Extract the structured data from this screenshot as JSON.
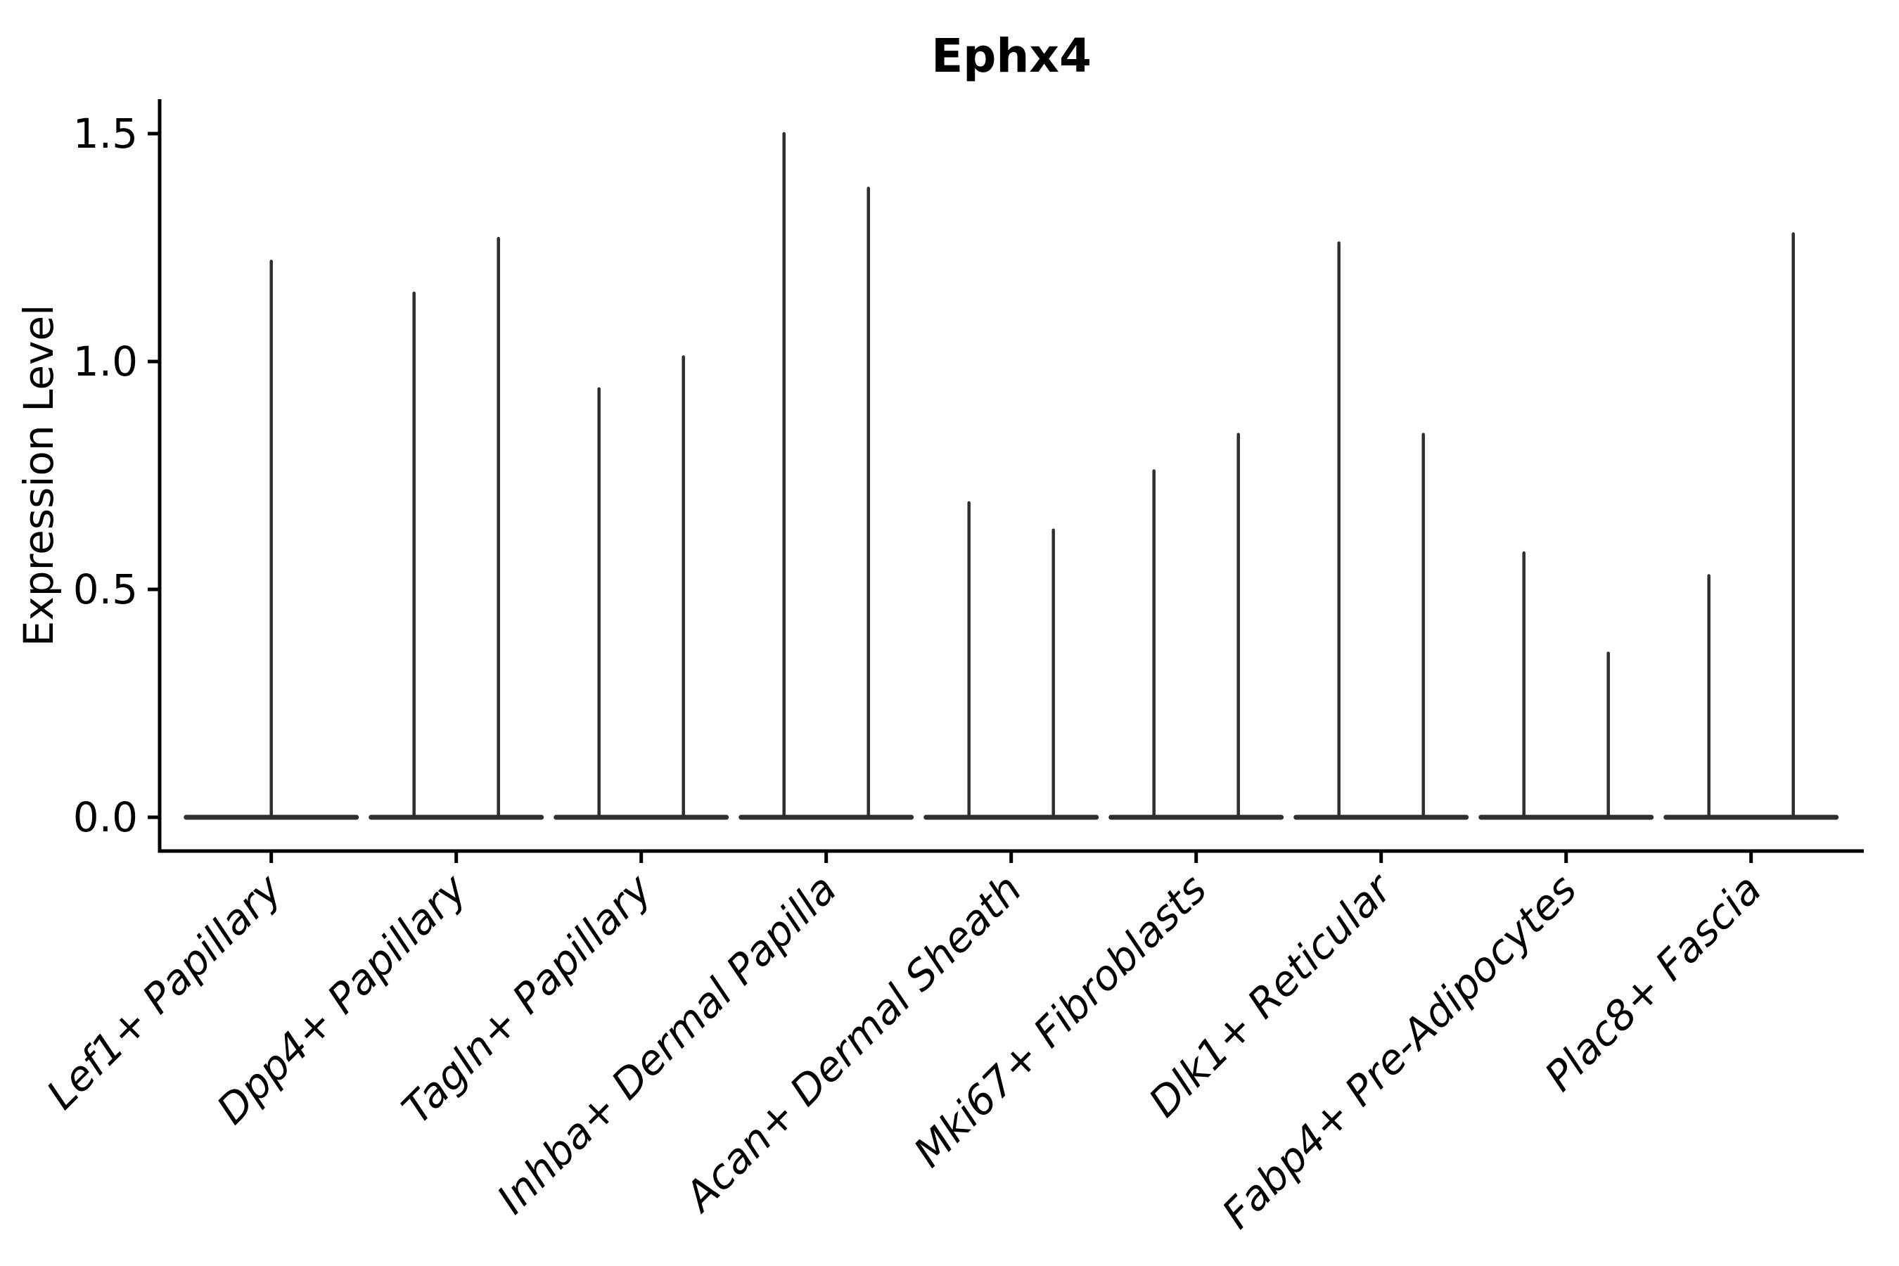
{
  "figure": {
    "background": "#ffffff"
  },
  "colors": {
    "violin_line": "#2f2f2f",
    "axis": "#000000",
    "text": "#000000",
    "background": "#ffffff"
  },
  "chart_data": {
    "type": "violin",
    "title": "Ephx4",
    "ylabel": "Expression Level",
    "xlabel": "",
    "grid": false,
    "legend_position": "none",
    "yticks": [
      0.0,
      0.5,
      1.0,
      1.5
    ],
    "ytick_labels": [
      "0.0",
      "0.5",
      "1.0",
      "1.5"
    ],
    "ylim": [
      -0.074,
      1.576
    ],
    "baseline_value": 0.0,
    "categories": [
      "Lef1+ Papillary",
      "Dpp4+ Papillary",
      "Tagln+ Papillary",
      "Inhba+ Dermal Papilla",
      "Acan+ Dermal Sheath",
      "Mki67+ Fibroblasts",
      "Dlk1+ Reticular",
      "Fabp4+ Pre-Adipocytes",
      "Plac8+ Fascia"
    ],
    "series": [
      {
        "category": "Lef1+ Papillary",
        "spike_maxima": [
          1.22
        ]
      },
      {
        "category": "Dpp4+ Papillary",
        "spike_maxima": [
          1.15,
          1.27
        ]
      },
      {
        "category": "Tagln+ Papillary",
        "spike_maxima": [
          0.94,
          1.01
        ]
      },
      {
        "category": "Inhba+ Dermal Papilla",
        "spike_maxima": [
          1.5,
          1.38
        ]
      },
      {
        "category": "Acan+ Dermal Sheath",
        "spike_maxima": [
          0.69,
          0.63
        ]
      },
      {
        "category": "Mki67+ Fibroblasts",
        "spike_maxima": [
          0.76,
          0.84
        ]
      },
      {
        "category": "Dlk1+ Reticular",
        "spike_maxima": [
          1.26,
          0.84
        ]
      },
      {
        "category": "Fabp4+ Pre-Adipocytes",
        "spike_maxima": [
          0.58,
          0.36
        ]
      },
      {
        "category": "Plac8+ Fascia",
        "spike_maxima": [
          0.53,
          1.28
        ]
      }
    ]
  }
}
